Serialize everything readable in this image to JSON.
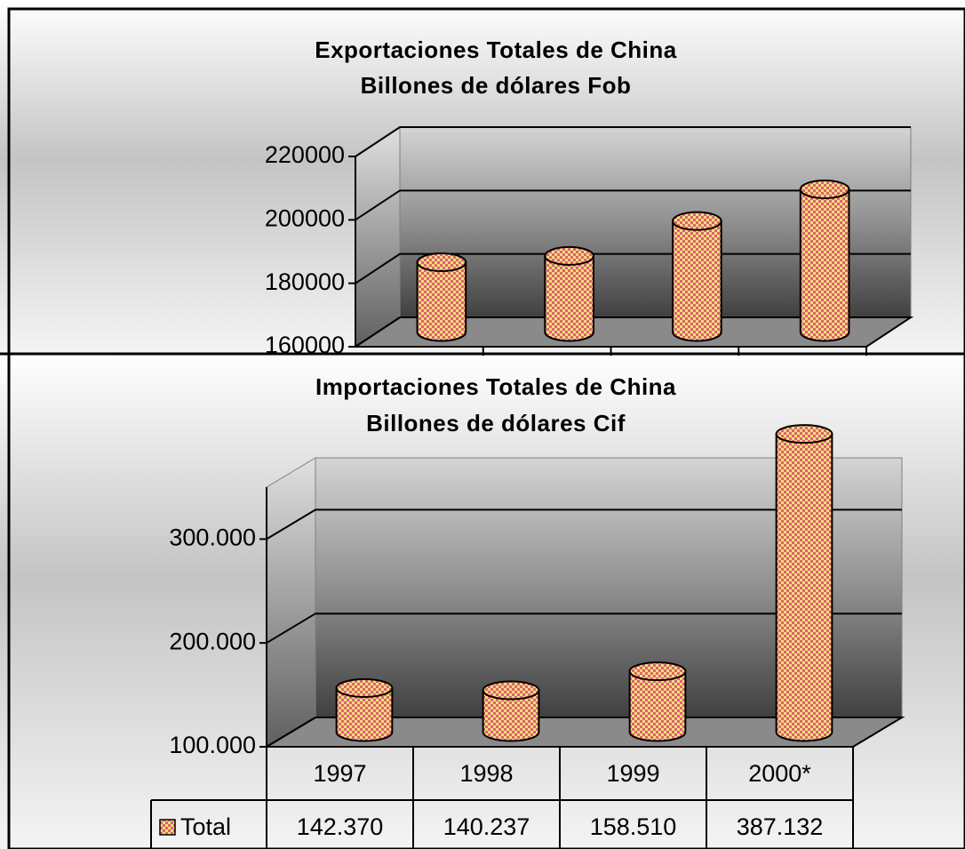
{
  "chart_data": [
    {
      "type": "bar3d",
      "title": "Exportaciones Totales de China",
      "subtitle": "Billones de dólares Fob",
      "values": [
        182000,
        184000,
        195000,
        205000
      ],
      "color": "#e0607a",
      "ylim": [
        160000,
        220000
      ],
      "yticks": [
        160000,
        180000,
        200000,
        220000
      ],
      "grid": true
    },
    {
      "type": "bar3d",
      "title": "Importaciones Totales de China",
      "subtitle": "Billones de dólares Cif",
      "categories": [
        "1997",
        "1998",
        "1999",
        "2000*"
      ],
      "series": [
        {
          "name": "Total",
          "color": "#e0607a",
          "values": [
            142370,
            140237,
            158510,
            387132
          ],
          "value_labels": [
            "142.370",
            "140.237",
            "158.510",
            "387.132"
          ]
        }
      ],
      "ylim": [
        100000,
        350000
      ],
      "yticks": [
        {
          "value": 100000,
          "label": "100.000"
        },
        {
          "value": 200000,
          "label": "200.000"
        },
        {
          "value": 300000,
          "label": "300.000"
        }
      ],
      "grid": true
    }
  ]
}
